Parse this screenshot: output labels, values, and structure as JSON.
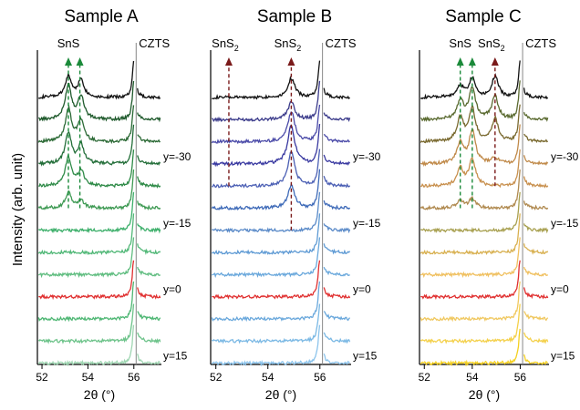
{
  "figure": {
    "y_axis_label": "Intensity (arb. unit)"
  },
  "chart_data": [
    {
      "type": "line",
      "title": "Sample A",
      "xlabel": "2θ (°)",
      "xlim": [
        51.8,
        57.2
      ],
      "xticks": [
        "52",
        "54",
        "56"
      ],
      "xtick_values": [
        52,
        54,
        56
      ],
      "grid": false,
      "legend": "none",
      "series_count": 13,
      "y_labels": [
        {
          "series_index": 3,
          "text": "y=-30"
        },
        {
          "series_index": 6,
          "text": "y=-15"
        },
        {
          "series_index": 9,
          "text": "y=0"
        },
        {
          "series_index": 12,
          "text": "y=15"
        }
      ],
      "series_colors": [
        "#111111",
        "#1f5a2c",
        "#2c6a36",
        "#236e39",
        "#2e8a47",
        "#3f9a54",
        "#3fb06c",
        "#52b878",
        "#60bd80",
        "#e03030",
        "#4fb774",
        "#6dc38a",
        "#9fd6b2"
      ],
      "reference_line": {
        "x": 56.1,
        "label": "CZTS"
      },
      "peak_markers": [
        {
          "label": "SnS",
          "sub": "",
          "x": 53.15,
          "color": "#1b8a3a",
          "marker_type": "arrow",
          "from_series": 5,
          "to_series": 0
        },
        {
          "label": "",
          "sub": "",
          "x": 53.65,
          "color": "#1b8a3a",
          "marker_type": "arrow",
          "from_series": 5,
          "to_series": 0
        }
      ],
      "peak_features": [
        {
          "x": 53.15,
          "heights": [
            0.55,
            0.9,
            0.85,
            0.8,
            0.75,
            0.4,
            0,
            0,
            0,
            0,
            0,
            0,
            0
          ]
        },
        {
          "x": 53.7,
          "heights": [
            0.45,
            0.6,
            0.55,
            0.5,
            0.4,
            0.2,
            0,
            0,
            0,
            0,
            0,
            0,
            0
          ]
        },
        {
          "x": 56.0,
          "heights": [
            1,
            1,
            1,
            1,
            1,
            1,
            1,
            1,
            1,
            1,
            1,
            1,
            1
          ]
        }
      ]
    },
    {
      "type": "line",
      "title": "Sample B",
      "xlabel": "2θ (°)",
      "xlim": [
        51.8,
        57.2
      ],
      "xticks": [
        "52",
        "54",
        "56"
      ],
      "xtick_values": [
        52,
        54,
        56
      ],
      "grid": false,
      "legend": "none",
      "series_count": 13,
      "y_labels": [
        {
          "series_index": 3,
          "text": "y=-30"
        },
        {
          "series_index": 6,
          "text": "y=-15"
        },
        {
          "series_index": 9,
          "text": "y=0"
        },
        {
          "series_index": 12,
          "text": "y=15"
        }
      ],
      "series_colors": [
        "#111111",
        "#3a3a8a",
        "#4a4aa8",
        "#3838a0",
        "#4b5fb4",
        "#3e6ab8",
        "#5a8ac8",
        "#5e9ad4",
        "#6aa8dc",
        "#e03030",
        "#6aa8dc",
        "#7ab8e4",
        "#8cc4ec"
      ],
      "reference_line": {
        "x": 56.1,
        "label": "CZTS"
      },
      "peak_markers": [
        {
          "label": "SnS",
          "sub": "2",
          "x": 52.5,
          "color": "#7a1a1a",
          "marker_type": "arrow",
          "from_series": 4,
          "to_series": 0
        },
        {
          "label": "SnS",
          "sub": "2",
          "x": 54.9,
          "color": "#7a1a1a",
          "marker_type": "arrow",
          "from_series": 6,
          "to_series": 0
        }
      ],
      "peak_features": [
        {
          "x": 54.9,
          "heights": [
            0.5,
            0.45,
            0.8,
            1.0,
            0.9,
            0.6,
            0,
            0,
            0,
            0,
            0,
            0,
            0
          ]
        },
        {
          "x": 56.0,
          "heights": [
            1,
            1,
            1,
            1,
            1,
            1,
            1,
            1,
            1,
            1,
            1,
            1,
            1
          ]
        }
      ]
    },
    {
      "type": "line",
      "title": "Sample C",
      "xlabel": "2θ (°)",
      "xlim": [
        51.8,
        57.2
      ],
      "xticks": [
        "52",
        "54",
        "56"
      ],
      "xtick_values": [
        52,
        54,
        56
      ],
      "grid": false,
      "legend": "none",
      "series_count": 13,
      "y_labels": [
        {
          "series_index": 3,
          "text": "y=-30"
        },
        {
          "series_index": 6,
          "text": "y=-15"
        },
        {
          "series_index": 9,
          "text": "y=0"
        },
        {
          "series_index": 12,
          "text": "y=15"
        }
      ],
      "series_colors": [
        "#111111",
        "#5a6a30",
        "#7a6a30",
        "#c08a4a",
        "#c8904e",
        "#b08a50",
        "#a8a050",
        "#d8b050",
        "#f0c060",
        "#e03030",
        "#f0c860",
        "#f4d04a",
        "#f4d020"
      ],
      "reference_line": {
        "x": 56.1,
        "label": "CZTS"
      },
      "peak_markers": [
        {
          "label": "SnS",
          "sub": "",
          "x": 53.5,
          "color": "#1b8a3a",
          "marker_type": "arrow",
          "from_series": 5,
          "to_series": 0
        },
        {
          "label": "",
          "sub": "",
          "x": 54.0,
          "color": "#1b8a3a",
          "marker_type": "arrow",
          "from_series": 5,
          "to_series": 0
        },
        {
          "label": "SnS",
          "sub": "2",
          "x": 54.95,
          "color": "#7a1a1a",
          "marker_type": "arrow",
          "from_series": 4,
          "to_series": 0
        }
      ],
      "peak_features": [
        {
          "x": 53.5,
          "heights": [
            0.3,
            0.5,
            0.6,
            0.55,
            0.45,
            0.2,
            0,
            0,
            0,
            0,
            0,
            0,
            0
          ]
        },
        {
          "x": 54.0,
          "heights": [
            0.5,
            0.8,
            0.85,
            0.85,
            0.7,
            0.25,
            0,
            0,
            0,
            0,
            0,
            0,
            0
          ]
        },
        {
          "x": 54.95,
          "heights": [
            0.55,
            0.6,
            0.6,
            0.15,
            0,
            0,
            0,
            0,
            0,
            0,
            0,
            0,
            0
          ]
        },
        {
          "x": 56.0,
          "heights": [
            1,
            1,
            1,
            1,
            1,
            1,
            1,
            1,
            1,
            1,
            1,
            1,
            0.9
          ]
        }
      ]
    }
  ]
}
